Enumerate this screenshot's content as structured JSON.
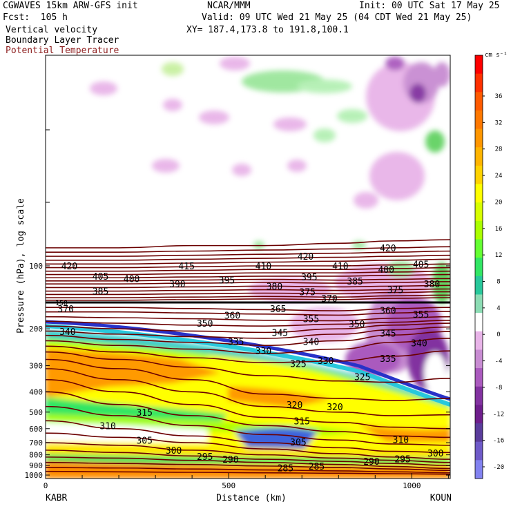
{
  "header": {
    "model": "CGWAVES 15km ARW-GFS init",
    "center": "NCAR/MMM",
    "init": "Init: 00 UTC Sat 17 May 25",
    "fcst": "Fcst:  105 h",
    "valid": "Valid: 09 UTC Wed 21 May 25 (04 CDT Wed 21 May 25)",
    "field1": "Vertical velocity",
    "field2": "Boundary Layer Tracer",
    "field3": "Potential Temperature",
    "xy": "XY= 187.4,173.8 to 191.8,100.1"
  },
  "colors": {
    "theta_contour": "#6b0000",
    "tropopause": "#000000"
  },
  "chart_data": {
    "type": "heatmap",
    "title": "",
    "xlabel": "Distance (km)",
    "ylabel": "Pressure (hPa), log scale",
    "x_range": [
      0,
      1105
    ],
    "x_ticks": [
      0,
      500,
      1000
    ],
    "y_scale": "log",
    "y_ticks": [
      100,
      200,
      300,
      400,
      500,
      600,
      700,
      800,
      900,
      1000
    ],
    "endpoints": {
      "left": "KABR",
      "right": "KOUN"
    },
    "colorbar": {
      "unit": "cm s⁻¹",
      "labels": [
        36,
        32,
        28,
        24,
        20,
        16,
        12,
        8,
        4,
        0,
        -4,
        -8,
        -12,
        -16,
        -20
      ],
      "colors": [
        "#ff0000",
        "#ff3000",
        "#ff5a00",
        "#ff7800",
        "#ff9600",
        "#ffb400",
        "#ffd200",
        "#ffff00",
        "#d7ff00",
        "#aaff00",
        "#64ff32",
        "#32e664",
        "#28c89b",
        "#8cdcb4",
        "#ffffff",
        "#e8b4e8",
        "#c88cd2",
        "#aa5abe",
        "#8232a0",
        "#6e1e8c",
        "#5a3c9b",
        "#6e5ac8",
        "#8282f0"
      ]
    },
    "tropopause_label": "150",
    "theta_labels": [
      {
        "text": "420",
        "x": 65,
        "p": 100
      },
      {
        "text": "415",
        "x": 385,
        "p": 100
      },
      {
        "text": "410",
        "x": 595,
        "p": 100
      },
      {
        "text": "420",
        "x": 710,
        "p": 90
      },
      {
        "text": "410",
        "x": 805,
        "p": 100
      },
      {
        "text": "420",
        "x": 935,
        "p": 82
      },
      {
        "text": "405",
        "x": 1025,
        "p": 98
      },
      {
        "text": "400",
        "x": 930,
        "p": 104
      },
      {
        "text": "405",
        "x": 150,
        "p": 112
      },
      {
        "text": "400",
        "x": 235,
        "p": 115
      },
      {
        "text": "390",
        "x": 360,
        "p": 122
      },
      {
        "text": "395",
        "x": 495,
        "p": 117
      },
      {
        "text": "395",
        "x": 720,
        "p": 113
      },
      {
        "text": "385",
        "x": 845,
        "p": 118
      },
      {
        "text": "380",
        "x": 1055,
        "p": 122
      },
      {
        "text": "380",
        "x": 625,
        "p": 125
      },
      {
        "text": "385",
        "x": 150,
        "p": 132
      },
      {
        "text": "375",
        "x": 715,
        "p": 133
      },
      {
        "text": "375",
        "x": 955,
        "p": 130
      },
      {
        "text": "370",
        "x": 775,
        "p": 143
      },
      {
        "text": "370",
        "x": 55,
        "p": 160
      },
      {
        "text": "365",
        "x": 635,
        "p": 160
      },
      {
        "text": "360",
        "x": 510,
        "p": 172
      },
      {
        "text": "360",
        "x": 935,
        "p": 163
      },
      {
        "text": "355",
        "x": 725,
        "p": 179
      },
      {
        "text": "355",
        "x": 1025,
        "p": 170
      },
      {
        "text": "350",
        "x": 435,
        "p": 188
      },
      {
        "text": "350",
        "x": 850,
        "p": 189
      },
      {
        "text": "345",
        "x": 640,
        "p": 208
      },
      {
        "text": "345",
        "x": 935,
        "p": 210
      },
      {
        "text": "340",
        "x": 60,
        "p": 206
      },
      {
        "text": "340",
        "x": 725,
        "p": 230
      },
      {
        "text": "340",
        "x": 1020,
        "p": 233
      },
      {
        "text": "335",
        "x": 520,
        "p": 230
      },
      {
        "text": "335",
        "x": 935,
        "p": 277
      },
      {
        "text": "330",
        "x": 595,
        "p": 255
      },
      {
        "text": "330",
        "x": 765,
        "p": 283
      },
      {
        "text": "325",
        "x": 690,
        "p": 293
      },
      {
        "text": "325",
        "x": 865,
        "p": 338
      },
      {
        "text": "320",
        "x": 680,
        "p": 460
      },
      {
        "text": "320",
        "x": 790,
        "p": 472
      },
      {
        "text": "315",
        "x": 270,
        "p": 500
      },
      {
        "text": "315",
        "x": 700,
        "p": 550
      },
      {
        "text": "310",
        "x": 170,
        "p": 580
      },
      {
        "text": "310",
        "x": 970,
        "p": 675
      },
      {
        "text": "305",
        "x": 270,
        "p": 680
      },
      {
        "text": "305",
        "x": 690,
        "p": 695
      },
      {
        "text": "300",
        "x": 350,
        "p": 760
      },
      {
        "text": "300",
        "x": 1065,
        "p": 785
      },
      {
        "text": "295",
        "x": 435,
        "p": 815
      },
      {
        "text": "295",
        "x": 975,
        "p": 835
      },
      {
        "text": "290",
        "x": 505,
        "p": 840
      },
      {
        "text": "290",
        "x": 890,
        "p": 858
      },
      {
        "text": "285",
        "x": 655,
        "p": 925
      },
      {
        "text": "285",
        "x": 740,
        "p": 905
      }
    ]
  }
}
